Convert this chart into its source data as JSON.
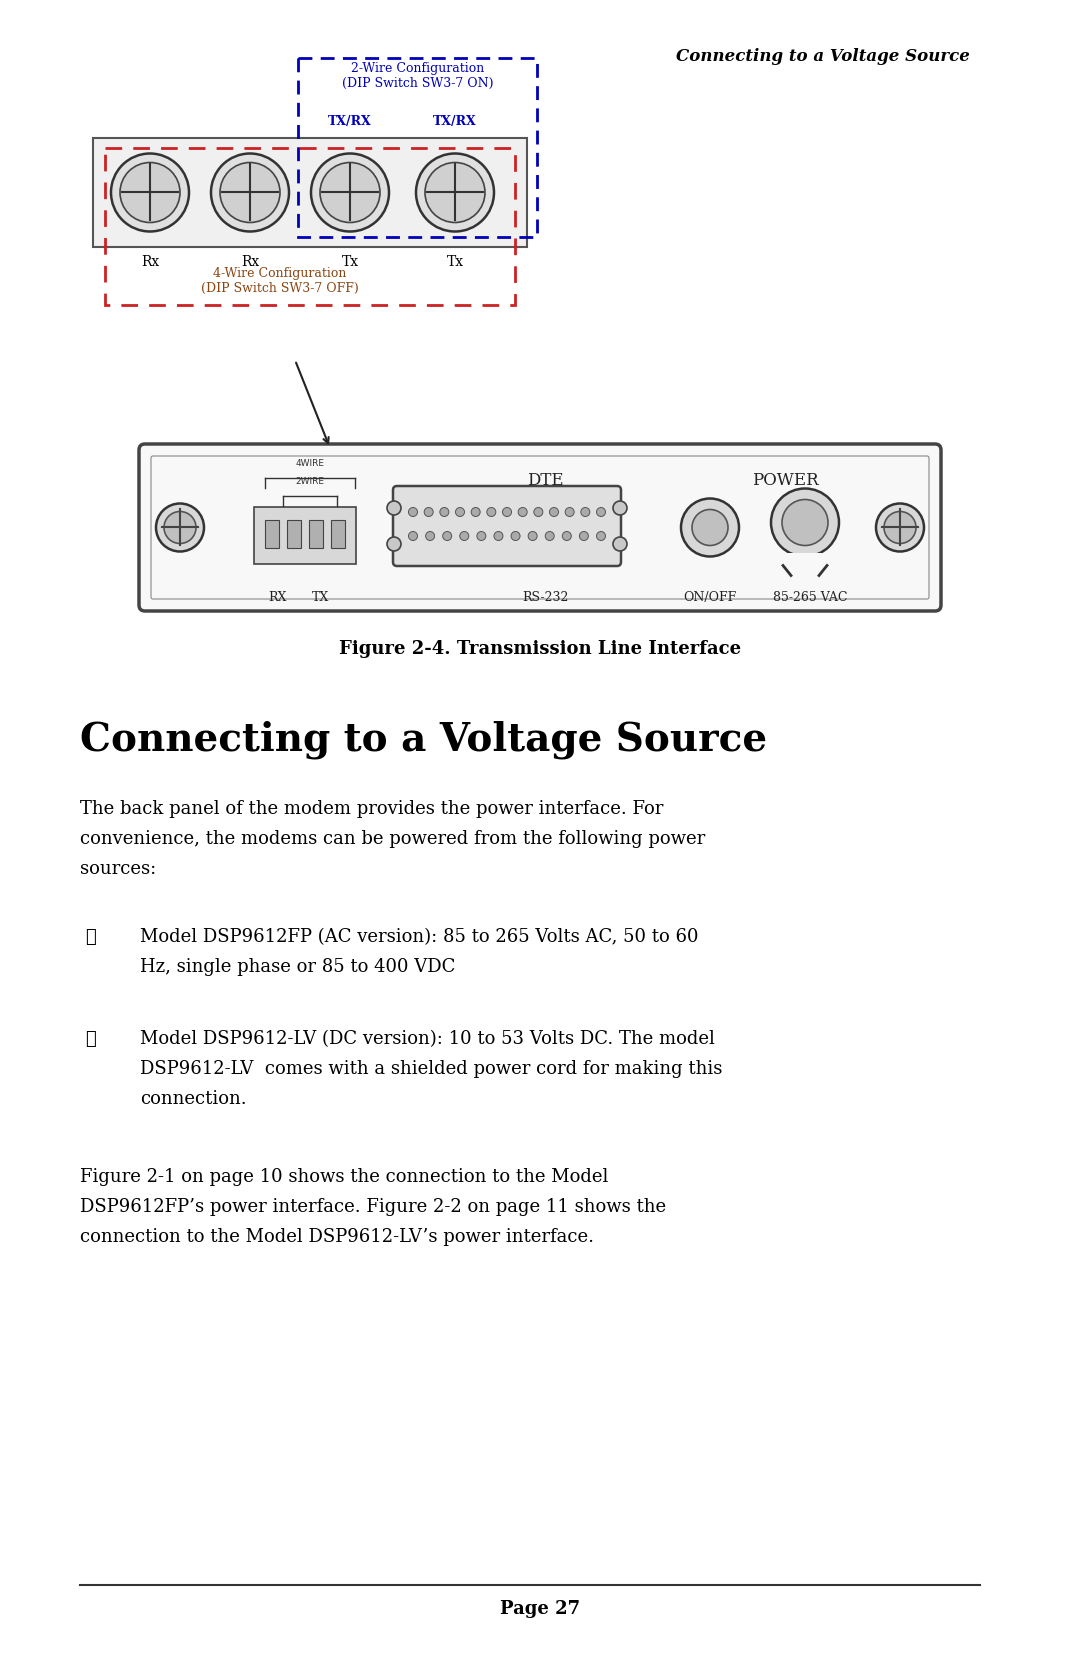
{
  "page_title": "Connecting to a Voltage Source",
  "figure_caption": "Figure 2-4. Transmission Line Interface",
  "section_heading": "Connecting to a Voltage Source",
  "body_line1": "The back panel of the modem provides the power interface. For",
  "body_line2": "convenience, the modems can be powered from the following power",
  "body_line3": "sources:",
  "bullet1_line1": "Model DSP9612FP (AC version): 85 to 265 Volts AC, 50 to 60",
  "bullet1_line2": "Hz, single phase or 85 to 400 VDC",
  "bullet2_line1": "Model DSP9612-LV (DC version): 10 to 53 Volts DC. The model",
  "bullet2_line2": "DSP9612-LV  comes with a shielded power cord for making this",
  "bullet2_line3": "connection.",
  "para2_line1": "Figure 2-1 on page 10 shows the connection to the Model",
  "para2_line2": "DSP9612FP’s power interface. Figure 2-2 on page 11 shows the",
  "para2_line3": "connection to the Model DSP9612-LV’s power interface.",
  "page_number": "Page 27",
  "bg_color": "#ffffff",
  "text_color": "#000000",
  "blue_color": "#0000bb",
  "red_color": "#cc2222",
  "dark_red": "#8b4513",
  "gray_border": "#444444",
  "gray_fill": "#f0f0f0",
  "panel_fill": "#f8f8f8"
}
